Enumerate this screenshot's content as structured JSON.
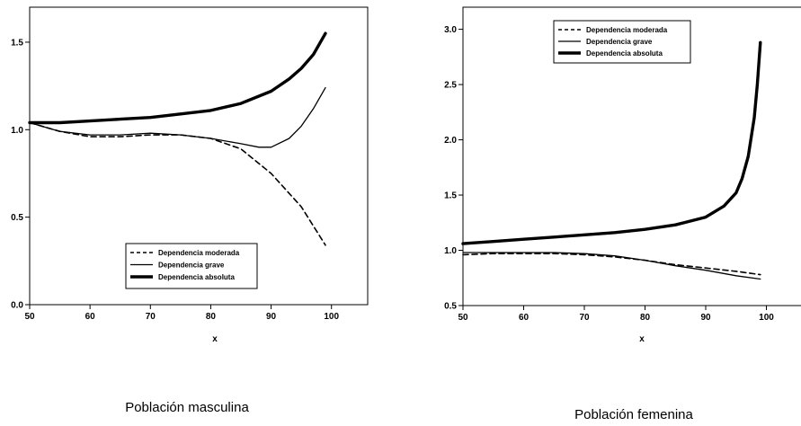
{
  "chart_data": [
    {
      "type": "line",
      "caption": "Población masculina",
      "xlabel": "x",
      "ylabel": "",
      "xlim": [
        50,
        106
      ],
      "ylim": [
        0.0,
        1.7
      ],
      "xticks": [
        "50",
        "60",
        "70",
        "80",
        "90",
        "100"
      ],
      "yticks": [
        "0.0",
        "0.5",
        "1.0",
        "1.5"
      ],
      "legend_position": "bottom-right",
      "series": [
        {
          "name": "Dependencia moderada",
          "style": "dashed",
          "x": [
            50,
            55,
            60,
            65,
            70,
            75,
            80,
            85,
            90,
            95,
            99
          ],
          "y": [
            1.04,
            0.99,
            0.96,
            0.96,
            0.97,
            0.97,
            0.95,
            0.89,
            0.75,
            0.56,
            0.34
          ]
        },
        {
          "name": "Dependencia grave",
          "style": "thin",
          "x": [
            50,
            55,
            60,
            65,
            70,
            75,
            80,
            85,
            88,
            90,
            93,
            95,
            97,
            99
          ],
          "y": [
            1.04,
            0.99,
            0.97,
            0.97,
            0.98,
            0.97,
            0.95,
            0.92,
            0.9,
            0.9,
            0.95,
            1.02,
            1.12,
            1.24
          ]
        },
        {
          "name": "Dependencia absoluta",
          "style": "thick",
          "x": [
            50,
            55,
            60,
            65,
            70,
            75,
            80,
            85,
            90,
            93,
            95,
            97,
            99
          ],
          "y": [
            1.04,
            1.04,
            1.05,
            1.06,
            1.07,
            1.09,
            1.11,
            1.15,
            1.22,
            1.29,
            1.35,
            1.43,
            1.55
          ]
        }
      ]
    },
    {
      "type": "line",
      "caption": "Población femenina",
      "xlabel": "x",
      "ylabel": "",
      "xlim": [
        50,
        106
      ],
      "ylim": [
        0.5,
        3.2
      ],
      "xticks": [
        "50",
        "60",
        "70",
        "80",
        "90",
        "100"
      ],
      "yticks": [
        "0.5",
        "1.0",
        "1.5",
        "2.0",
        "2.5",
        "3.0"
      ],
      "legend_position": "top-left",
      "series": [
        {
          "name": "Dependencia moderada",
          "style": "dashed",
          "x": [
            50,
            55,
            60,
            65,
            70,
            75,
            80,
            85,
            90,
            95,
            99
          ],
          "y": [
            0.96,
            0.97,
            0.97,
            0.97,
            0.96,
            0.94,
            0.91,
            0.87,
            0.84,
            0.81,
            0.78
          ]
        },
        {
          "name": "Dependencia grave",
          "style": "thin",
          "x": [
            50,
            55,
            60,
            65,
            70,
            75,
            80,
            85,
            90,
            95,
            99
          ],
          "y": [
            0.98,
            0.98,
            0.98,
            0.98,
            0.97,
            0.95,
            0.91,
            0.86,
            0.82,
            0.77,
            0.74
          ]
        },
        {
          "name": "Dependencia absoluta",
          "style": "thick",
          "x": [
            50,
            55,
            60,
            65,
            70,
            75,
            80,
            85,
            90,
            93,
            95,
            96,
            97,
            98,
            98.5,
            99
          ],
          "y": [
            1.06,
            1.08,
            1.1,
            1.12,
            1.14,
            1.16,
            1.19,
            1.23,
            1.3,
            1.4,
            1.52,
            1.65,
            1.85,
            2.2,
            2.5,
            2.88
          ]
        }
      ]
    }
  ]
}
